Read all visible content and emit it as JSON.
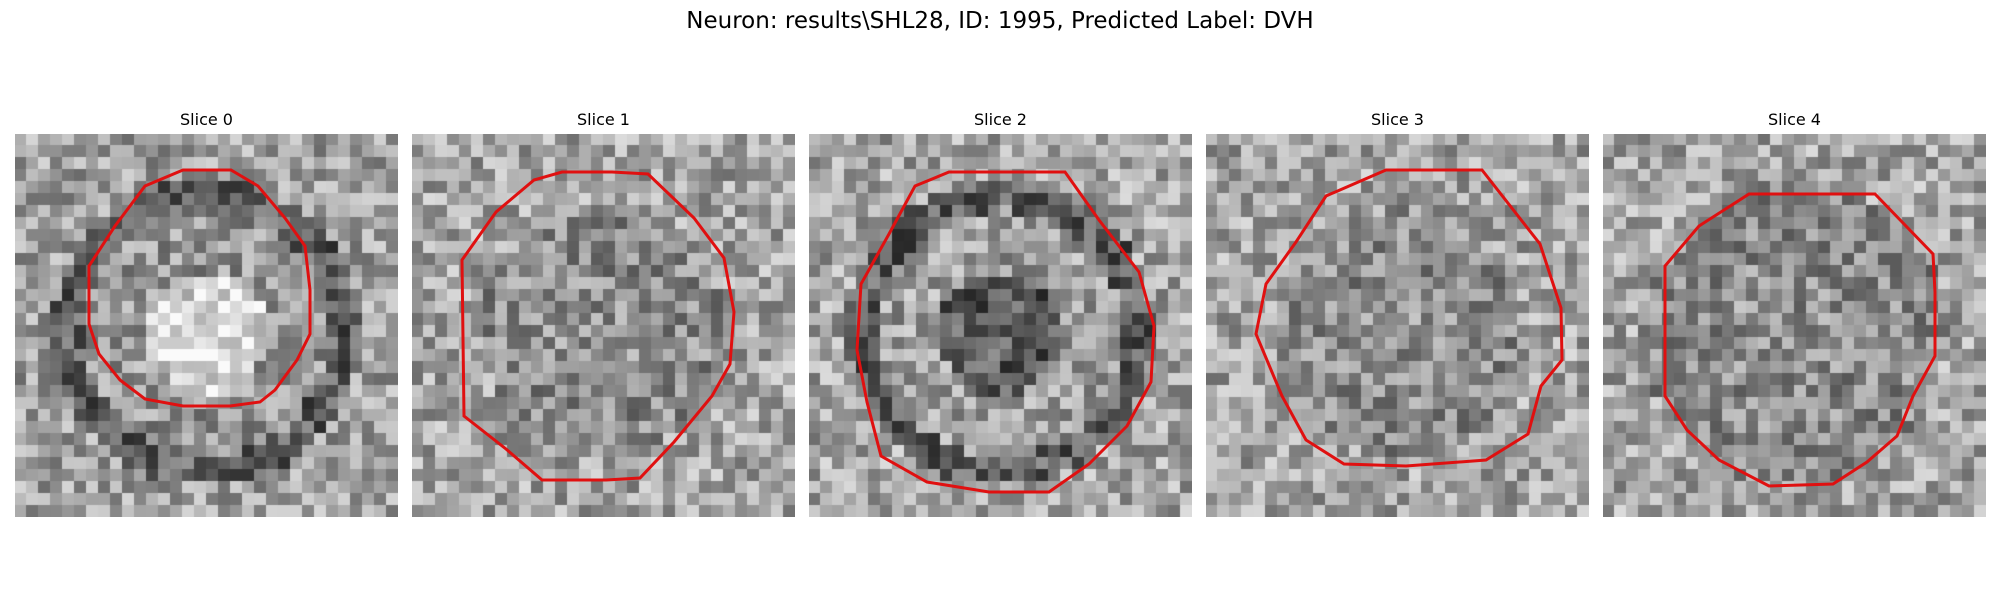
{
  "figure": {
    "title": "Neuron: results\\SHL28, ID: 1995, Predicted Label: DVH",
    "contour_color": "#e01010",
    "grid_size": 32
  },
  "panels": [
    {
      "title": "Slice 0",
      "center_brightness": "bright",
      "ring": "dark"
    },
    {
      "title": "Slice 1",
      "center_brightness": "medium",
      "ring": "none"
    },
    {
      "title": "Slice 2",
      "center_brightness": "dark",
      "ring": "dark"
    },
    {
      "title": "Slice 3",
      "center_brightness": "medium",
      "ring": "none"
    },
    {
      "title": "Slice 4",
      "center_brightness": "medium",
      "ring": "dark"
    }
  ]
}
